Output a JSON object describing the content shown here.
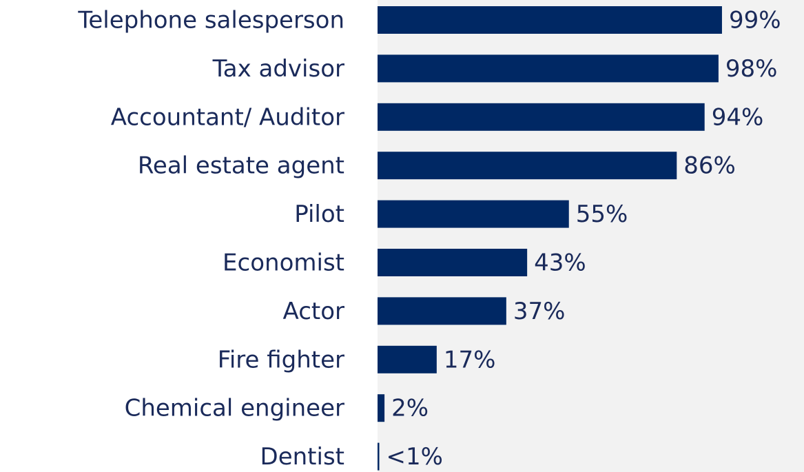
{
  "chart_data": {
    "type": "hbar",
    "categories": [
      "Telephone salesperson",
      "Tax advisor",
      "Accountant/ Auditor",
      "Real estate agent",
      "Pilot",
      "Economist",
      "Actor",
      "Fire fighter",
      "Chemical engineer",
      "Dentist"
    ],
    "values": [
      99,
      98,
      94,
      86,
      55,
      43,
      37,
      17,
      2,
      0.5
    ],
    "value_labels": [
      "99%",
      "98%",
      "94%",
      "86%",
      "55%",
      "43%",
      "37%",
      "17%",
      "2%",
      "<1%"
    ],
    "color": "#002864"
  }
}
